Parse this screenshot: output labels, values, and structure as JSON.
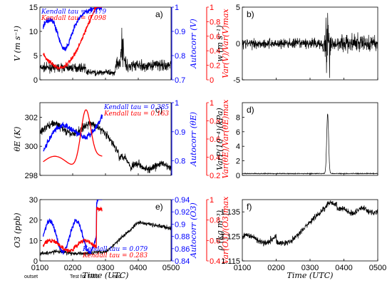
{
  "chart_data": [
    {
      "panel": "a)",
      "type": "line",
      "ylabel": "V (m s⁻¹)",
      "ylim": [
        0,
        15
      ],
      "yticks": [
        0,
        5,
        10,
        15
      ],
      "ylabel_right_blue": "Autocorr (V)",
      "ylim_blue": [
        0.7,
        1
      ],
      "yticks_blue": [
        0.7,
        0.8,
        0.9,
        1
      ],
      "ylabel_right_red": "Var(V)/Var(V)max",
      "ylim_red": [
        0,
        1
      ],
      "yticks_red": [
        0,
        0.2,
        0.4,
        0.6,
        0.8,
        1
      ],
      "kendall": [
        {
          "text": "Kendall tau = 0.479",
          "color": "#0000ff"
        },
        {
          "text": "Kendall tau = 0.098",
          "color": "#ff0000"
        }
      ],
      "xlim": [
        100,
        500
      ]
    },
    {
      "panel": "b)",
      "type": "line",
      "ylabel": "w (m s⁻¹)",
      "ylim": [
        -5,
        5
      ],
      "yticks": [
        -5,
        0,
        5
      ],
      "xlim": [
        100,
        500
      ]
    },
    {
      "panel": "c)",
      "type": "line",
      "ylabel": "θE (K)",
      "ylim": [
        298,
        303
      ],
      "yticks": [
        298,
        300,
        302
      ],
      "ylabel_right_blue": "Autocorr (θE)",
      "ylim_blue": [
        0.75,
        1
      ],
      "yticks_blue": [
        0.8,
        0.9,
        1
      ],
      "ylabel_right_red": "Var(θE)/Var(θE)max",
      "ylim_red": [
        0.2,
        1
      ],
      "yticks_red": [
        0.2,
        0.4,
        0.6,
        0.8,
        1
      ],
      "kendall": [
        {
          "text": "Kendall tau = 0.385",
          "color": "#0000ff"
        },
        {
          "text": "Kendall tau = 0.163",
          "color": "#ff0000"
        }
      ],
      "xlim": [
        100,
        500
      ]
    },
    {
      "panel": "d)",
      "type": "line",
      "ylabel": "VarP(10⁻⁴)(kPa)",
      "ylim": [
        0,
        10
      ],
      "yticks": [
        0,
        2,
        4,
        6,
        8
      ],
      "xlim": [
        100,
        500
      ]
    },
    {
      "panel": "e)",
      "type": "line",
      "ylabel": "O3 (ppb)",
      "ylim": [
        0,
        30
      ],
      "yticks": [
        0,
        10,
        20,
        30
      ],
      "ylabel_right_blue": "Autocorr (O3)",
      "ylim_blue": [
        0.84,
        0.94
      ],
      "yticks_blue": [
        0.84,
        0.86,
        0.88,
        0.9,
        0.92,
        0.94
      ],
      "ylabel_right_red": "Var(O3)/(O3)max",
      "ylim_red": [
        0.4,
        1
      ],
      "yticks_red": [
        0.4,
        0.6,
        0.8,
        1
      ],
      "kendall": [
        {
          "text": "Kendall tau = 0.079",
          "color": "#0000ff"
        },
        {
          "text": "Kendall tau = 0.283",
          "color": "#ff0000"
        }
      ],
      "xlim": [
        100,
        500
      ],
      "annotations": [
        "outset",
        "Test for EWS",
        "end"
      ]
    },
    {
      "panel": "f)",
      "type": "line",
      "ylabel": "ρ (kg m⁻³)",
      "ylim": [
        1.115,
        1.14
      ],
      "yticks": [
        1.115,
        1.125,
        1.135
      ],
      "xlim": [
        100,
        500
      ]
    }
  ],
  "xaxis": {
    "label": "Time (UTC)",
    "ticks": [
      "0100",
      "0200",
      "0300",
      "0400",
      "0500"
    ]
  }
}
